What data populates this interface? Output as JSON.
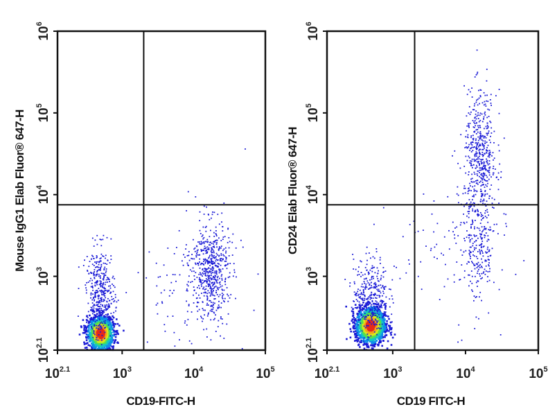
{
  "colors": {
    "frame": "#111111",
    "sparse": "#1a1ad6",
    "density_scale": [
      "#1a1ad6",
      "#0f8fe8",
      "#15c9c0",
      "#58e04a",
      "#d8e81e",
      "#f6a21a",
      "#e62a1a"
    ]
  },
  "chart_data": [
    {
      "type": "scatter",
      "subtype": "flow-cytometry density dot plot",
      "xlabel": "CD19-FITC-H",
      "ylabel": "Mouse IgG1 Elab Fluor® 647-H",
      "x_scale": "log",
      "y_scale": "log",
      "xlim": [
        125,
        100000
      ],
      "ylim": [
        125,
        1000000
      ],
      "x_ticks": [
        {
          "value": 125,
          "base": "10",
          "exp": "2.1"
        },
        {
          "value": 1000,
          "base": "10",
          "exp": "3"
        },
        {
          "value": 10000,
          "base": "10",
          "exp": "4"
        },
        {
          "value": 100000,
          "base": "10",
          "exp": "5"
        }
      ],
      "y_ticks": [
        {
          "value": 125,
          "base": "10",
          "exp": "2.1"
        },
        {
          "value": 1000,
          "base": "10",
          "exp": "3"
        },
        {
          "value": 10000,
          "base": "10",
          "exp": "4"
        },
        {
          "value": 100000,
          "base": "10",
          "exp": "5"
        },
        {
          "value": 1000000,
          "base": "10",
          "exp": "6"
        }
      ],
      "quadrant_gates": {
        "x": 2000,
        "y": 7500
      },
      "populations": [
        {
          "center": [
            500,
            200
          ],
          "spread_log": [
            0.09,
            0.1
          ],
          "count": 1400,
          "dense": true
        },
        {
          "center": [
            500,
            600
          ],
          "spread_log": [
            0.1,
            0.28
          ],
          "count": 420,
          "dense": false
        },
        {
          "center": [
            17000,
            1200
          ],
          "spread_log": [
            0.13,
            0.3
          ],
          "count": 560,
          "dense": false
        },
        {
          "center": [
            9000,
            700
          ],
          "spread_log": [
            0.4,
            0.4
          ],
          "count": 110,
          "dense": false
        }
      ]
    },
    {
      "type": "scatter",
      "subtype": "flow-cytometry density dot plot",
      "xlabel": "CD19 FITC-H",
      "ylabel": "CD24 Elab Fluor® 647-H",
      "x_scale": "log",
      "y_scale": "log",
      "xlim": [
        125,
        100000
      ],
      "ylim": [
        125,
        1000000
      ],
      "x_ticks": [
        {
          "value": 125,
          "base": "10",
          "exp": "2.1"
        },
        {
          "value": 1000,
          "base": "10",
          "exp": "3"
        },
        {
          "value": 10000,
          "base": "10",
          "exp": "4"
        },
        {
          "value": 100000,
          "base": "10",
          "exp": "5"
        }
      ],
      "y_ticks": [
        {
          "value": 125,
          "base": "10",
          "exp": "2.1"
        },
        {
          "value": 1000,
          "base": "10",
          "exp": "3"
        },
        {
          "value": 10000,
          "base": "10",
          "exp": "4"
        },
        {
          "value": 100000,
          "base": "10",
          "exp": "5"
        },
        {
          "value": 1000000,
          "base": "10",
          "exp": "6"
        }
      ],
      "quadrant_gates": {
        "x": 2000,
        "y": 7500
      },
      "populations": [
        {
          "center": [
            500,
            250
          ],
          "spread_log": [
            0.1,
            0.11
          ],
          "count": 1500,
          "dense": true
        },
        {
          "center": [
            500,
            550
          ],
          "spread_log": [
            0.12,
            0.25
          ],
          "count": 380,
          "dense": false
        },
        {
          "center": [
            16000,
            28000
          ],
          "spread_log": [
            0.11,
            0.4
          ],
          "count": 520,
          "dense": false
        },
        {
          "center": [
            15000,
            2200
          ],
          "spread_log": [
            0.12,
            0.35
          ],
          "count": 230,
          "dense": false
        },
        {
          "center": [
            6000,
            2000
          ],
          "spread_log": [
            0.4,
            0.45
          ],
          "count": 80,
          "dense": false
        }
      ]
    }
  ]
}
